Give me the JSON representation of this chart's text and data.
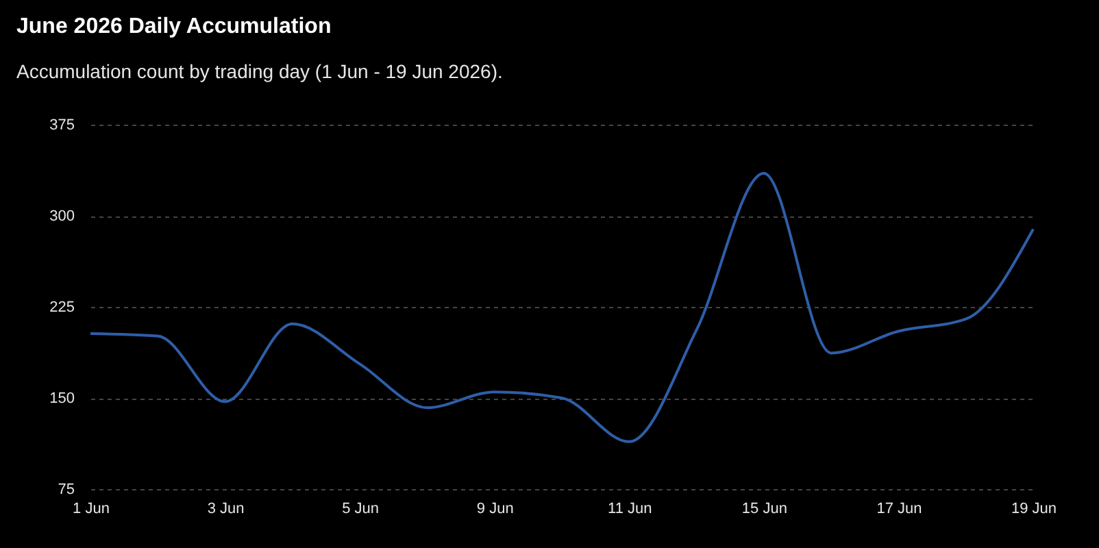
{
  "chart_data": {
    "type": "line",
    "title": "June 2026 Daily Accumulation",
    "subtitle": "Accumulation count by trading day (1 Jun - 19 Jun 2026).",
    "categories": [
      "1 Jun",
      null,
      "3 Jun",
      null,
      "5 Jun",
      null,
      "9 Jun",
      null,
      "11 Jun",
      null,
      "15 Jun",
      null,
      "17 Jun",
      null,
      "19 Jun"
    ],
    "series": [
      {
        "color": "#2f5ea8",
        "values": [
          203,
          201,
          147,
          211,
          178,
          142,
          155,
          150,
          114,
          206,
          335,
          187,
          205,
          215,
          289
        ]
      }
    ],
    "ylim": [
      75,
      375
    ],
    "yticks": [
      75,
      150,
      225,
      300,
      375
    ],
    "grid": "y",
    "marker": "none",
    "line_style": "solid"
  }
}
